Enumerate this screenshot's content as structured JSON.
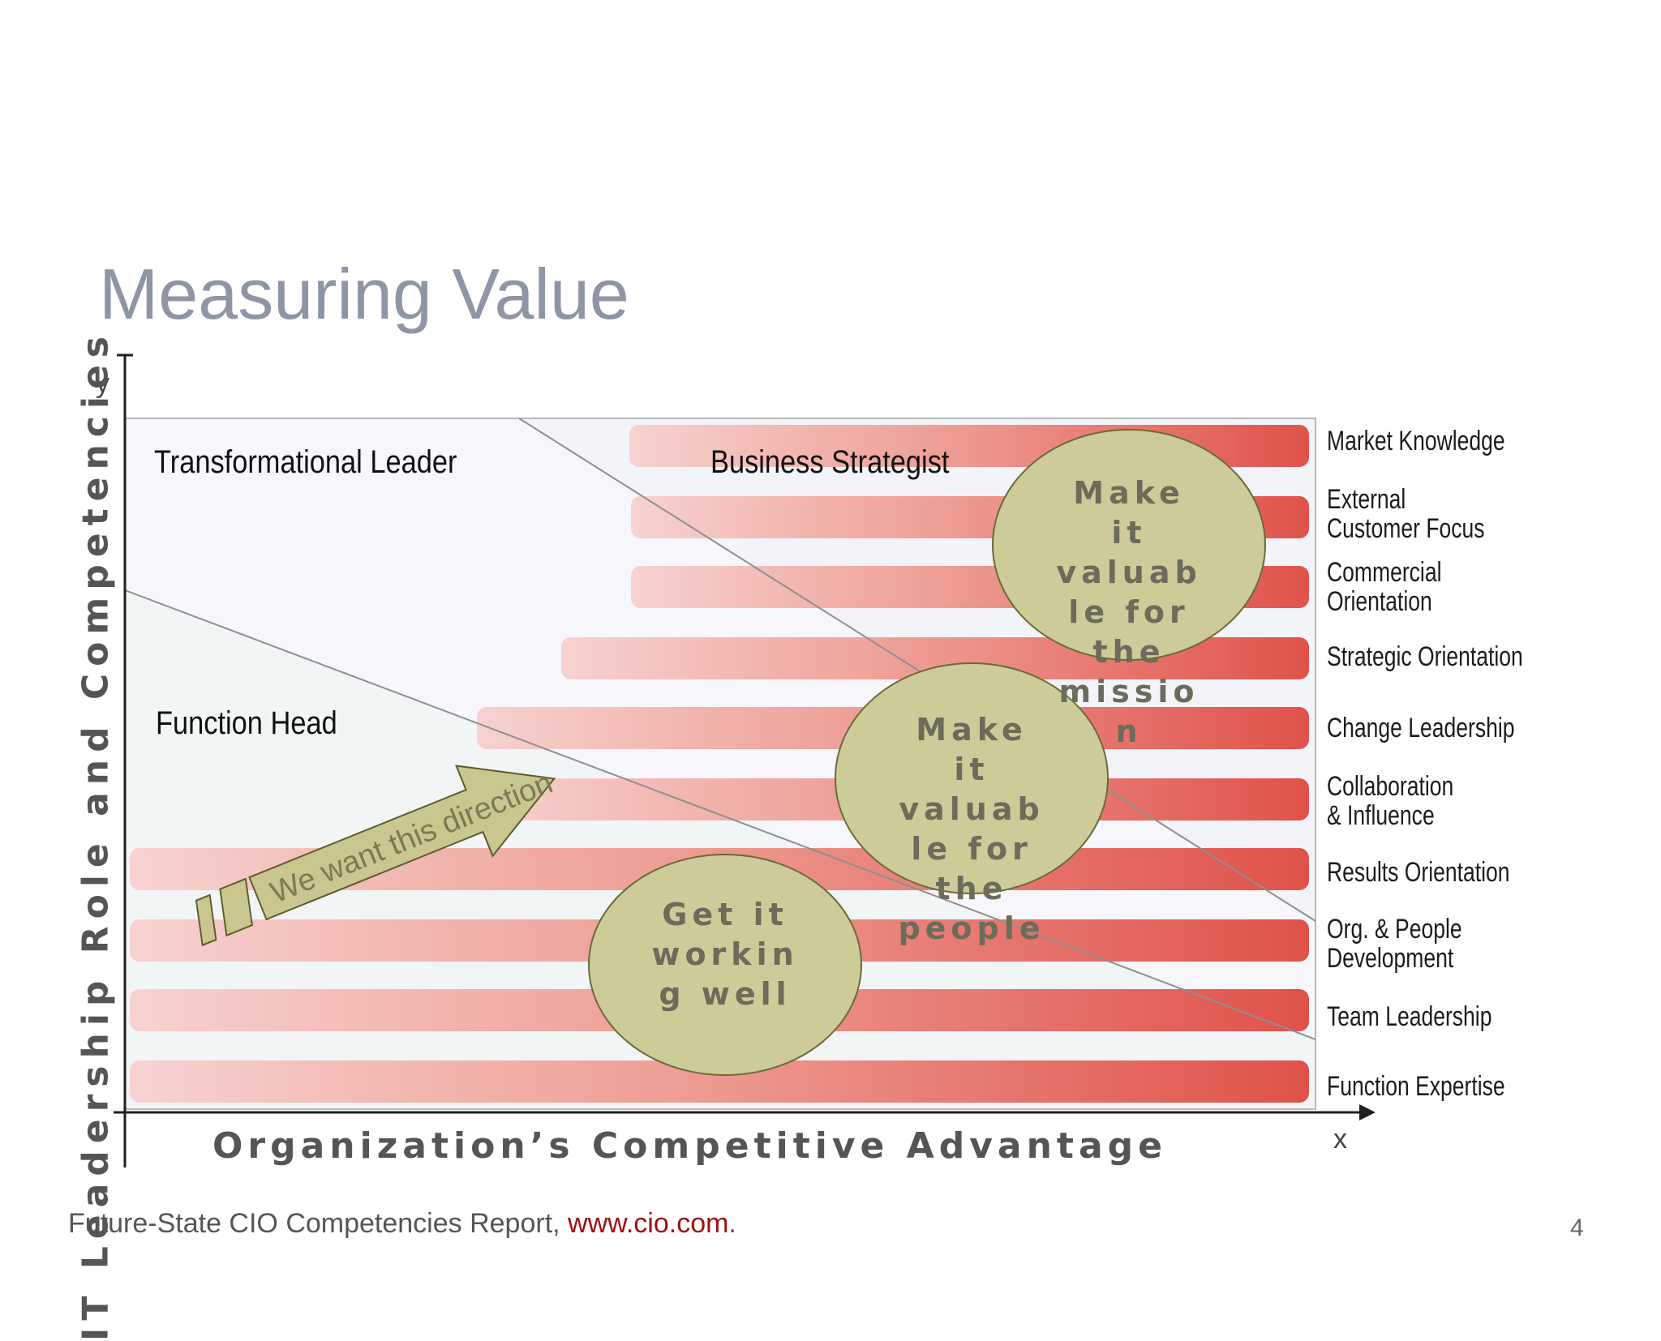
{
  "slide": {
    "title": "Measuring Value",
    "page_number": "4",
    "footer": {
      "text": "Future-State CIO Competencies Report, ",
      "link": "www.cio.com",
      "suffix": "."
    }
  },
  "diagram": {
    "y_axis_label": "IT Leadership Role and Competencies",
    "x_axis_label": "Organization’s Competitive Advantage",
    "y_letter": "y",
    "x_letter": "x",
    "roles": {
      "transformational": "Transformational Leader",
      "strategist": "Business Strategist",
      "function_head": "Function Head"
    },
    "competencies": [
      "Market Knowledge",
      "External\nCustomer Focus",
      "Commercial\nOrientation",
      "Strategic Orientation",
      "Change Leadership",
      "Collaboration\n& Influence",
      "Results Orientation",
      "Org. & People\nDevelopment",
      "Team Leadership",
      "Function Expertise"
    ],
    "bubbles": {
      "mission": "Make\nit\nvaluab\nle for\nthe\nmissio\nn",
      "people": "Make\nit\nvaluab\nle for\nthe\npeople",
      "working": "Get it\nworkin\ng well"
    },
    "arrow_text": "We want this direction",
    "colors": {
      "bar_light": "#f6cccc",
      "bar_dark": "#e2544a",
      "bubble_fill": "#cdcb98",
      "arrow_fill": "#c9c690",
      "title": "#8e95a6"
    }
  }
}
